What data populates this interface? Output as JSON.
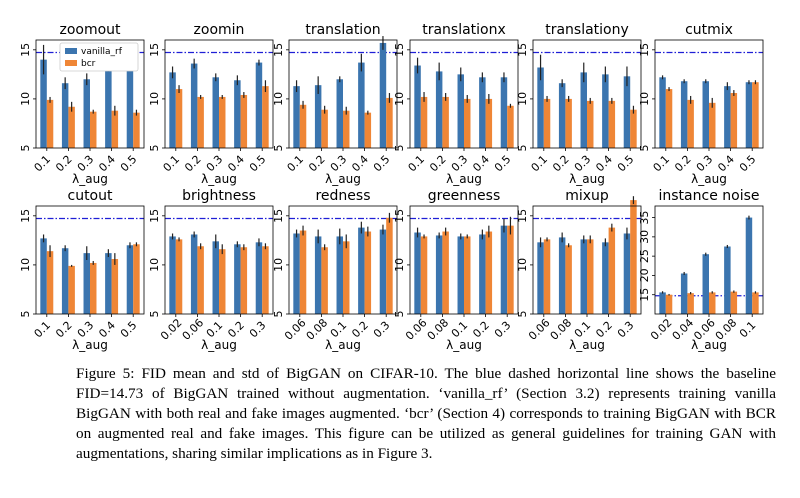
{
  "figure": {
    "legend": {
      "entries": [
        "vanilla_rf",
        "bcr"
      ]
    },
    "colors": {
      "vanilla_rf": "#3b75af",
      "bcr": "#ef8636",
      "baseline": "#1f1fd6"
    },
    "baseline_fid": 14.73
  },
  "chart_data": [
    {
      "type": "bar",
      "title": "zoomout",
      "xlabel": "λ_aug",
      "categories": [
        "0.1",
        "0.2",
        "0.3",
        "0.4",
        "0.5"
      ],
      "ylim": [
        5,
        16
      ],
      "yticks": [
        "5",
        "10",
        "15"
      ],
      "series": [
        {
          "name": "vanilla_rf",
          "values": [
            14.0,
            11.6,
            12.0,
            13.4,
            14.9
          ],
          "err": [
            1.5,
            0.6,
            0.6,
            0.6,
            0.8
          ]
        },
        {
          "name": "bcr",
          "values": [
            9.9,
            9.2,
            8.7,
            8.8,
            8.6
          ],
          "err": [
            0.3,
            0.5,
            0.2,
            0.5,
            0.3
          ]
        }
      ]
    },
    {
      "type": "bar",
      "title": "zoomin",
      "xlabel": "λ_aug",
      "categories": [
        "0.1",
        "0.2",
        "0.3",
        "0.4",
        "0.5"
      ],
      "ylim": [
        5,
        16
      ],
      "yticks": [
        "5",
        "10",
        "15"
      ],
      "series": [
        {
          "name": "vanilla_rf",
          "values": [
            12.7,
            13.6,
            12.2,
            11.9,
            13.7
          ],
          "err": [
            0.6,
            0.5,
            0.4,
            0.5,
            0.3
          ]
        },
        {
          "name": "bcr",
          "values": [
            11.0,
            10.2,
            10.2,
            10.4,
            11.3
          ],
          "err": [
            0.4,
            0.2,
            0.2,
            0.3,
            0.6
          ]
        }
      ]
    },
    {
      "type": "bar",
      "title": "translation",
      "xlabel": "λ_aug",
      "categories": [
        "0.1",
        "0.2",
        "0.3",
        "0.4",
        "0.5"
      ],
      "ylim": [
        5,
        16
      ],
      "yticks": [
        "5",
        "10",
        "15"
      ],
      "series": [
        {
          "name": "vanilla_rf",
          "values": [
            11.3,
            11.4,
            12.0,
            13.7,
            15.7
          ],
          "err": [
            0.6,
            0.9,
            0.3,
            0.9,
            0.7
          ]
        },
        {
          "name": "bcr",
          "values": [
            9.4,
            8.9,
            8.8,
            8.6,
            10.1
          ],
          "err": [
            0.4,
            0.4,
            0.4,
            0.2,
            0.5
          ]
        }
      ]
    },
    {
      "type": "bar",
      "title": "translationx",
      "xlabel": "λ_aug",
      "categories": [
        "0.1",
        "0.2",
        "0.3",
        "0.4",
        "0.5"
      ],
      "ylim": [
        5,
        16
      ],
      "yticks": [
        "5",
        "10",
        "15"
      ],
      "series": [
        {
          "name": "vanilla_rf",
          "values": [
            13.4,
            12.8,
            12.5,
            12.2,
            12.2
          ],
          "err": [
            0.8,
            0.9,
            0.7,
            0.5,
            0.5
          ]
        },
        {
          "name": "bcr",
          "values": [
            10.2,
            10.2,
            10.0,
            10.0,
            9.3
          ],
          "err": [
            0.5,
            0.4,
            0.4,
            0.5,
            0.2
          ]
        }
      ]
    },
    {
      "type": "bar",
      "title": "translationy",
      "xlabel": "λ_aug",
      "categories": [
        "0.1",
        "0.2",
        "0.3",
        "0.4",
        "0.5"
      ],
      "ylim": [
        5,
        16
      ],
      "yticks": [
        "5",
        "10",
        "15"
      ],
      "series": [
        {
          "name": "vanilla_rf",
          "values": [
            13.2,
            11.6,
            12.7,
            12.5,
            12.3
          ],
          "err": [
            1.3,
            0.4,
            1.0,
            0.8,
            1.0
          ]
        },
        {
          "name": "bcr",
          "values": [
            10.0,
            10.0,
            9.8,
            9.8,
            8.9
          ],
          "err": [
            0.3,
            0.3,
            0.3,
            0.3,
            0.4
          ]
        }
      ]
    },
    {
      "type": "bar",
      "title": "cutmix",
      "xlabel": "λ_aug",
      "categories": [
        "0.1",
        "0.2",
        "0.3",
        "0.4",
        "0.5"
      ],
      "ylim": [
        5,
        16
      ],
      "yticks": [
        "5",
        "10",
        "15"
      ],
      "series": [
        {
          "name": "vanilla_rf",
          "values": [
            12.2,
            11.8,
            11.8,
            11.3,
            11.7
          ],
          "err": [
            0.2,
            0.2,
            0.2,
            0.4,
            0.2
          ]
        },
        {
          "name": "bcr",
          "values": [
            11.0,
            9.9,
            9.6,
            10.6,
            11.7
          ],
          "err": [
            0.2,
            0.4,
            0.5,
            0.3,
            0.2
          ]
        }
      ]
    },
    {
      "type": "bar",
      "title": "cutout",
      "xlabel": "λ_aug",
      "categories": [
        "0.1",
        "0.2",
        "0.3",
        "0.4",
        "0.5"
      ],
      "ylim": [
        5,
        16
      ],
      "yticks": [
        "5",
        "10",
        "15"
      ],
      "series": [
        {
          "name": "vanilla_rf",
          "values": [
            12.7,
            11.7,
            11.2,
            11.2,
            12.0
          ],
          "err": [
            0.4,
            0.3,
            0.7,
            0.4,
            0.3
          ]
        },
        {
          "name": "bcr",
          "values": [
            11.4,
            9.9,
            10.2,
            10.6,
            12.1
          ],
          "err": [
            0.6,
            0.1,
            0.2,
            0.6,
            0.2
          ]
        }
      ]
    },
    {
      "type": "bar",
      "title": "brightness",
      "xlabel": "λ_aug",
      "categories": [
        "0.02",
        "0.06",
        "0.1",
        "0.2",
        "0.3"
      ],
      "ylim": [
        5,
        16
      ],
      "yticks": [
        "5",
        "10",
        "15"
      ],
      "series": [
        {
          "name": "vanilla_rf",
          "values": [
            12.9,
            13.1,
            12.4,
            12.1,
            12.3
          ],
          "err": [
            0.3,
            0.3,
            0.7,
            0.3,
            0.4
          ]
        },
        {
          "name": "bcr",
          "values": [
            12.6,
            11.9,
            11.6,
            11.8,
            11.9
          ],
          "err": [
            0.2,
            0.3,
            0.5,
            0.3,
            0.3
          ]
        }
      ]
    },
    {
      "type": "bar",
      "title": "redness",
      "xlabel": "λ_aug",
      "categories": [
        "0.06",
        "0.08",
        "0.1",
        "0.2",
        "0.3"
      ],
      "ylim": [
        5,
        16
      ],
      "yticks": [
        "5",
        "10",
        "15"
      ],
      "series": [
        {
          "name": "vanilla_rf",
          "values": [
            13.2,
            12.9,
            12.9,
            13.8,
            13.6
          ],
          "err": [
            0.4,
            0.7,
            0.8,
            0.6,
            0.5
          ]
        },
        {
          "name": "bcr",
          "values": [
            13.5,
            11.8,
            12.4,
            13.4,
            14.8
          ],
          "err": [
            0.5,
            0.3,
            0.7,
            0.5,
            0.5
          ]
        }
      ]
    },
    {
      "type": "bar",
      "title": "greenness",
      "xlabel": "λ_aug",
      "categories": [
        "0.06",
        "0.08",
        "0.1",
        "0.2",
        "0.3"
      ],
      "ylim": [
        5,
        16
      ],
      "yticks": [
        "5",
        "10",
        "15"
      ],
      "series": [
        {
          "name": "vanilla_rf",
          "values": [
            13.3,
            13.0,
            12.9,
            13.1,
            14.0
          ],
          "err": [
            0.5,
            0.3,
            0.3,
            0.5,
            0.7
          ]
        },
        {
          "name": "bcr",
          "values": [
            12.9,
            13.4,
            12.9,
            13.4,
            14.0
          ],
          "err": [
            0.2,
            0.4,
            0.2,
            0.6,
            0.9
          ]
        }
      ]
    },
    {
      "type": "bar",
      "title": "mixup",
      "xlabel": "λ_aug",
      "categories": [
        "0.06",
        "0.08",
        "0.1",
        "0.2",
        "0.3"
      ],
      "ylim": [
        5,
        16
      ],
      "yticks": [
        "5",
        "10",
        "15"
      ],
      "series": [
        {
          "name": "vanilla_rf",
          "values": [
            12.3,
            12.8,
            12.6,
            12.3,
            13.2
          ],
          "err": [
            0.5,
            0.5,
            0.4,
            0.4,
            0.6
          ]
        },
        {
          "name": "bcr",
          "values": [
            12.6,
            12.0,
            12.6,
            13.8,
            16.6
          ],
          "err": [
            0.2,
            0.2,
            0.4,
            0.4,
            0.4
          ]
        }
      ]
    },
    {
      "type": "bar",
      "title": "instance noise",
      "xlabel": "λ_aug",
      "categories": [
        "0.02",
        "0.04",
        "0.06",
        "0.08",
        "0.1"
      ],
      "ylim": [
        10,
        38
      ],
      "yticks": [
        "15",
        "20",
        "25",
        "30",
        "35"
      ],
      "series": [
        {
          "name": "vanilla_rf",
          "values": [
            15.6,
            20.5,
            25.5,
            27.5,
            35.0
          ],
          "err": [
            0.3,
            0.4,
            0.4,
            0.4,
            0.5
          ]
        },
        {
          "name": "bcr",
          "values": [
            15.0,
            15.4,
            15.6,
            15.8,
            15.6
          ],
          "err": [
            0.2,
            0.3,
            0.3,
            0.3,
            0.3
          ]
        }
      ]
    }
  ],
  "caption": "Figure 5: FID mean and std of BigGAN on CIFAR-10. The blue dashed horizontal line shows the baseline FID=14.73 of BigGAN trained without augmentation. ‘vanilla_rf’ (Section 3.2) represents training vanilla BigGAN with both real and fake images augmented. ‘bcr’ (Section 4) corresponds to training BigGAN with BCR on augmented real and fake images. This figure can be utilized as general guidelines for training GAN with augmentations, sharing similar implications as in Figure 3."
}
